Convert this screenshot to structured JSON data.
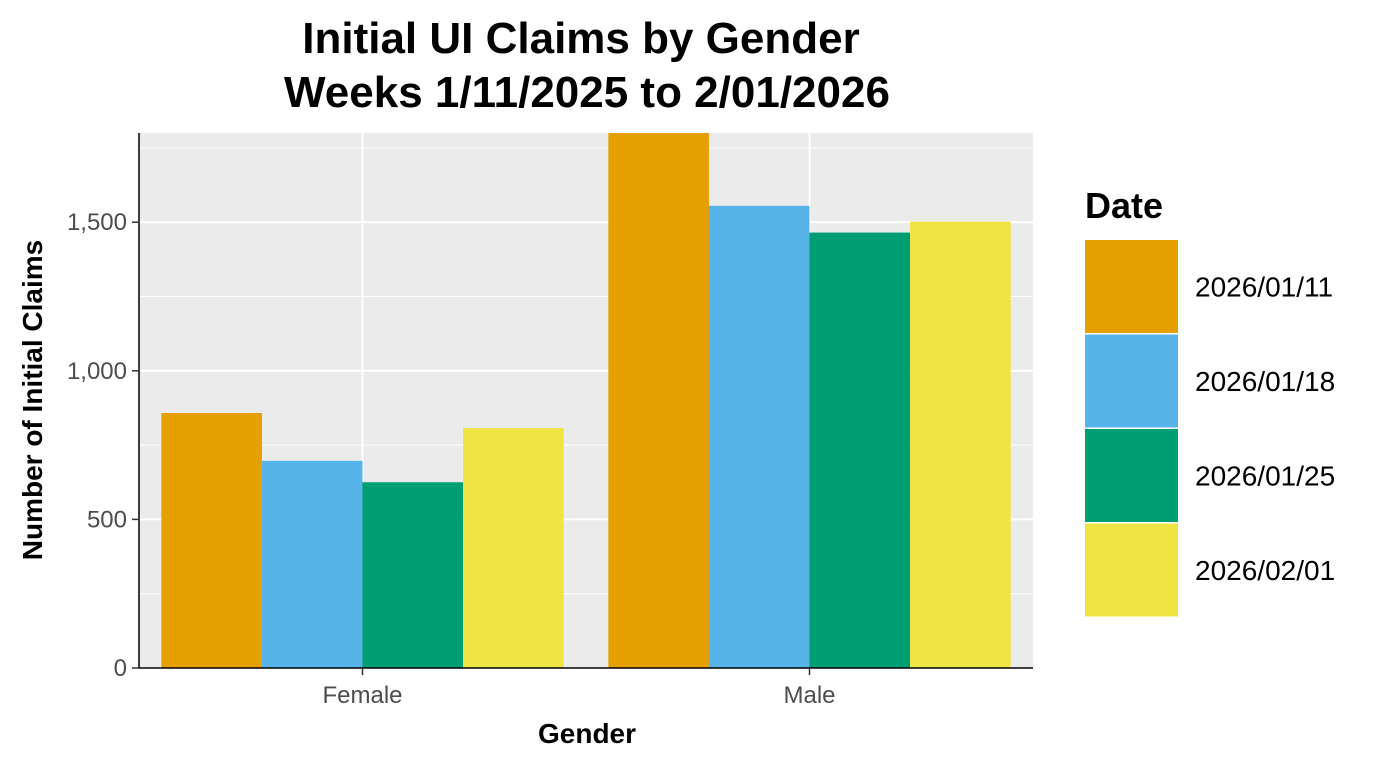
{
  "chart_data": {
    "type": "bar",
    "title": "Initial UI Claims by Gender",
    "subtitle": "Weeks  1/11/2025 to 2/01/2026",
    "xlabel": "Gender",
    "ylabel": "Number of Initial Claims",
    "categories": [
      "Female",
      "Male"
    ],
    "ylim": [
      0,
      1800
    ],
    "yticks": [
      0,
      500,
      1000,
      1500
    ],
    "ytick_labels": [
      "0",
      "500",
      "1,000",
      "1,500"
    ],
    "grid": true,
    "legend": {
      "title": "Date",
      "position": "right"
    },
    "series": [
      {
        "name": "2026/01/11",
        "color": "#E69F00",
        "values": [
          858,
          1800
        ]
      },
      {
        "name": "2026/01/18",
        "color": "#56B4E9",
        "values": [
          697,
          1555
        ]
      },
      {
        "name": "2026/01/25",
        "color": "#009E73",
        "values": [
          625,
          1465
        ]
      },
      {
        "name": "2026/02/01",
        "color": "#F0E442",
        "values": [
          807,
          1502
        ]
      }
    ]
  }
}
